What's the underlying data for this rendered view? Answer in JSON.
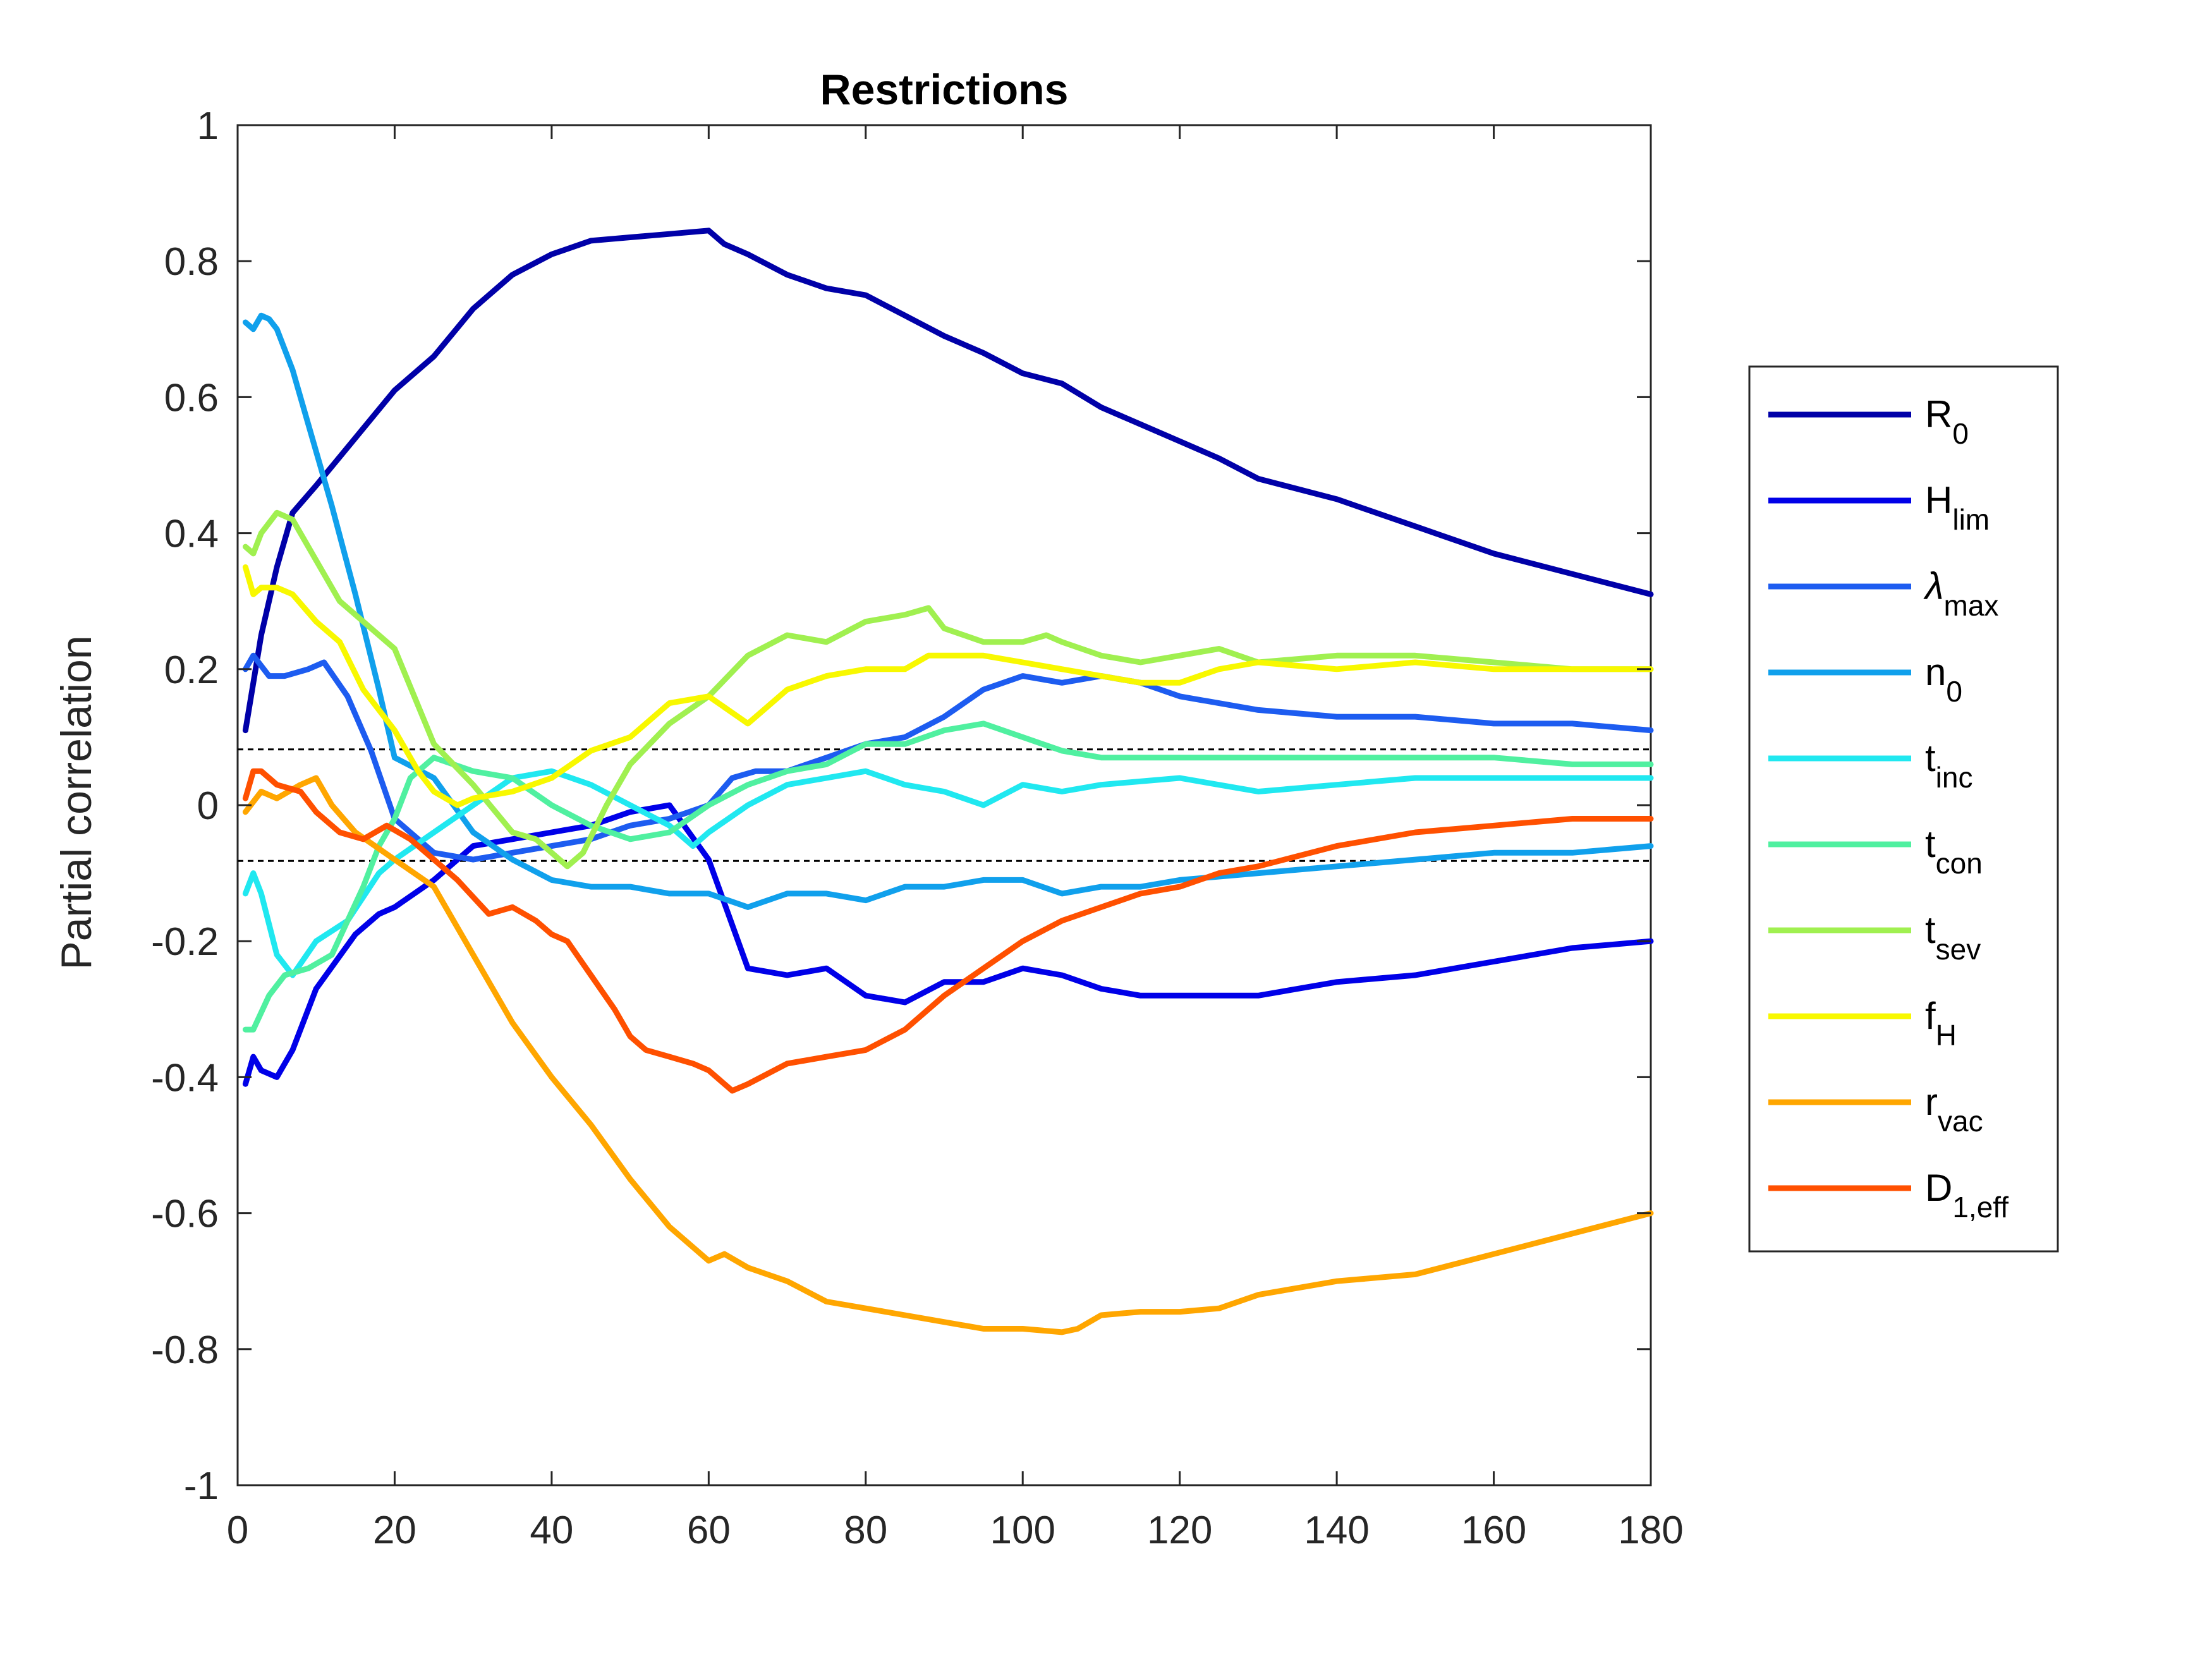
{
  "chart_data": {
    "type": "line",
    "title": "Restrictions",
    "xlabel": "",
    "ylabel": "Partial correlation",
    "xlim": [
      0,
      180
    ],
    "ylim": [
      -1,
      1
    ],
    "xticks": [
      0,
      20,
      40,
      60,
      80,
      100,
      120,
      140,
      160,
      180
    ],
    "yticks": [
      1,
      0.8,
      0.6,
      0.4,
      0.2,
      0,
      -0.2,
      -0.4,
      -0.6,
      -0.8,
      -1
    ],
    "ytick_labels": [
      "1",
      "0.8",
      "0.6",
      "0.4",
      "0.2",
      "0",
      "-0.2",
      "-0.4",
      "-0.6",
      "-0.8",
      "-1"
    ],
    "reference_lines": [
      0.082,
      -0.082
    ],
    "grid": false,
    "legend_position": "right, outside",
    "series": [
      {
        "name": "R",
        "sub": "0",
        "color": "#0000A8",
        "x": [
          1,
          3,
          5,
          7,
          10,
          15,
          20,
          25,
          30,
          35,
          40,
          45,
          50,
          55,
          60,
          62,
          65,
          70,
          75,
          80,
          85,
          90,
          95,
          100,
          105,
          110,
          115,
          120,
          125,
          130,
          140,
          150,
          160,
          170,
          180
        ],
        "y": [
          0.11,
          0.25,
          0.35,
          0.43,
          0.47,
          0.54,
          0.61,
          0.66,
          0.73,
          0.78,
          0.81,
          0.83,
          0.835,
          0.84,
          0.845,
          0.825,
          0.81,
          0.78,
          0.76,
          0.75,
          0.72,
          0.69,
          0.665,
          0.635,
          0.62,
          0.585,
          0.56,
          0.535,
          0.51,
          0.48,
          0.45,
          0.41,
          0.37,
          0.34,
          0.31
        ]
      },
      {
        "name": "H",
        "sub": "lim",
        "color": "#0000E8",
        "x": [
          1,
          2,
          3,
          5,
          7,
          10,
          15,
          18,
          20,
          25,
          30,
          35,
          40,
          45,
          50,
          55,
          60,
          65,
          70,
          75,
          80,
          85,
          90,
          95,
          100,
          105,
          110,
          115,
          120,
          125,
          130,
          140,
          150,
          160,
          170,
          180
        ],
        "y": [
          -0.41,
          -0.37,
          -0.39,
          -0.4,
          -0.36,
          -0.27,
          -0.19,
          -0.16,
          -0.15,
          -0.11,
          -0.06,
          -0.05,
          -0.04,
          -0.03,
          -0.01,
          0.0,
          -0.08,
          -0.24,
          -0.25,
          -0.24,
          -0.28,
          -0.29,
          -0.26,
          -0.26,
          -0.24,
          -0.25,
          -0.27,
          -0.28,
          -0.28,
          -0.28,
          -0.28,
          -0.26,
          -0.25,
          -0.23,
          -0.21,
          -0.2
        ]
      },
      {
        "name": "λ",
        "sub": "max",
        "color": "#1D5CF0",
        "x": [
          1,
          2,
          4,
          6,
          9,
          11,
          14,
          17,
          20,
          25,
          30,
          35,
          40,
          45,
          50,
          55,
          60,
          63,
          66,
          70,
          75,
          80,
          85,
          90,
          95,
          100,
          105,
          110,
          115,
          120,
          130,
          140,
          150,
          160,
          170,
          180
        ],
        "y": [
          0.2,
          0.22,
          0.19,
          0.19,
          0.2,
          0.21,
          0.16,
          0.08,
          -0.02,
          -0.07,
          -0.08,
          -0.07,
          -0.06,
          -0.05,
          -0.03,
          -0.02,
          0.0,
          0.04,
          0.05,
          0.05,
          0.07,
          0.09,
          0.1,
          0.13,
          0.17,
          0.19,
          0.18,
          0.19,
          0.18,
          0.16,
          0.14,
          0.13,
          0.13,
          0.12,
          0.12,
          0.11
        ]
      },
      {
        "name": "n",
        "sub": "0",
        "color": "#10A0EC",
        "x": [
          1,
          2,
          3,
          4,
          5,
          7,
          9,
          12,
          15,
          18,
          20,
          25,
          30,
          35,
          40,
          45,
          50,
          55,
          60,
          65,
          70,
          75,
          80,
          85,
          90,
          95,
          100,
          105,
          110,
          115,
          120,
          130,
          140,
          150,
          160,
          170,
          180
        ],
        "y": [
          0.71,
          0.7,
          0.72,
          0.715,
          0.7,
          0.64,
          0.56,
          0.44,
          0.31,
          0.17,
          0.07,
          0.04,
          -0.04,
          -0.08,
          -0.11,
          -0.12,
          -0.12,
          -0.13,
          -0.13,
          -0.15,
          -0.13,
          -0.13,
          -0.14,
          -0.12,
          -0.12,
          -0.11,
          -0.11,
          -0.13,
          -0.12,
          -0.12,
          -0.11,
          -0.1,
          -0.09,
          -0.08,
          -0.07,
          -0.07,
          -0.06
        ]
      },
      {
        "name": "t",
        "sub": "inc",
        "color": "#20E8F0",
        "x": [
          1,
          2,
          3,
          5,
          7,
          10,
          14,
          18,
          20,
          25,
          30,
          35,
          40,
          45,
          50,
          55,
          58,
          60,
          65,
          70,
          75,
          80,
          85,
          90,
          95,
          100,
          105,
          110,
          120,
          130,
          140,
          150,
          160,
          170,
          180
        ],
        "y": [
          -0.13,
          -0.1,
          -0.13,
          -0.22,
          -0.25,
          -0.2,
          -0.17,
          -0.1,
          -0.08,
          -0.04,
          0.0,
          0.04,
          0.05,
          0.03,
          0.0,
          -0.03,
          -0.06,
          -0.04,
          0.0,
          0.03,
          0.04,
          0.05,
          0.03,
          0.02,
          0.0,
          0.03,
          0.02,
          0.03,
          0.04,
          0.02,
          0.03,
          0.04,
          0.04,
          0.04,
          0.04
        ]
      },
      {
        "name": "t",
        "sub": "con",
        "color": "#50F0A0",
        "x": [
          1,
          2,
          4,
          6,
          9,
          12,
          16,
          18,
          20,
          22,
          25,
          30,
          35,
          40,
          45,
          50,
          55,
          60,
          65,
          70,
          75,
          80,
          85,
          90,
          95,
          100,
          105,
          110,
          120,
          130,
          140,
          150,
          160,
          170,
          180
        ],
        "y": [
          -0.33,
          -0.33,
          -0.28,
          -0.25,
          -0.24,
          -0.22,
          -0.12,
          -0.06,
          -0.02,
          0.04,
          0.07,
          0.05,
          0.04,
          0.0,
          -0.03,
          -0.05,
          -0.04,
          0.0,
          0.03,
          0.05,
          0.06,
          0.09,
          0.09,
          0.11,
          0.12,
          0.1,
          0.08,
          0.07,
          0.07,
          0.07,
          0.07,
          0.07,
          0.07,
          0.06,
          0.06
        ]
      },
      {
        "name": "t",
        "sub": "sev",
        "color": "#A0F050",
        "x": [
          1,
          2,
          3,
          5,
          7,
          10,
          13,
          16,
          20,
          25,
          30,
          35,
          38,
          40,
          42,
          44,
          47,
          50,
          55,
          60,
          65,
          70,
          75,
          80,
          85,
          88,
          90,
          95,
          100,
          103,
          105,
          110,
          115,
          120,
          125,
          130,
          140,
          150,
          160,
          170,
          180
        ],
        "y": [
          0.38,
          0.37,
          0.4,
          0.43,
          0.42,
          0.36,
          0.3,
          0.27,
          0.23,
          0.09,
          0.03,
          -0.04,
          -0.05,
          -0.07,
          -0.09,
          -0.07,
          0.0,
          0.06,
          0.12,
          0.16,
          0.22,
          0.25,
          0.24,
          0.27,
          0.28,
          0.29,
          0.26,
          0.24,
          0.24,
          0.25,
          0.24,
          0.22,
          0.21,
          0.22,
          0.23,
          0.21,
          0.22,
          0.22,
          0.21,
          0.2,
          0.2
        ]
      },
      {
        "name": "f",
        "sub": "H",
        "color": "#F8F800",
        "x": [
          1,
          2,
          3,
          5,
          7,
          10,
          13,
          16,
          20,
          23,
          25,
          28,
          30,
          35,
          40,
          45,
          50,
          55,
          60,
          65,
          70,
          75,
          80,
          85,
          88,
          90,
          95,
          100,
          105,
          110,
          115,
          120,
          125,
          130,
          140,
          150,
          160,
          170,
          180
        ],
        "y": [
          0.35,
          0.31,
          0.32,
          0.32,
          0.31,
          0.27,
          0.24,
          0.17,
          0.11,
          0.05,
          0.02,
          0.0,
          0.01,
          0.02,
          0.04,
          0.08,
          0.1,
          0.15,
          0.16,
          0.12,
          0.17,
          0.19,
          0.2,
          0.2,
          0.22,
          0.22,
          0.22,
          0.21,
          0.2,
          0.19,
          0.18,
          0.18,
          0.2,
          0.21,
          0.2,
          0.21,
          0.2,
          0.2,
          0.2
        ]
      },
      {
        "name": "r",
        "sub": "vac",
        "color": "#FFA600",
        "x": [
          1,
          3,
          5,
          8,
          10,
          12,
          15,
          20,
          25,
          30,
          35,
          40,
          45,
          50,
          55,
          60,
          62,
          65,
          70,
          75,
          80,
          85,
          90,
          95,
          100,
          105,
          107,
          110,
          115,
          120,
          125,
          130,
          140,
          150,
          160,
          170,
          180
        ],
        "y": [
          -0.01,
          0.02,
          0.01,
          0.03,
          0.04,
          0.0,
          -0.04,
          -0.08,
          -0.12,
          -0.22,
          -0.32,
          -0.4,
          -0.47,
          -0.55,
          -0.62,
          -0.67,
          -0.66,
          -0.68,
          -0.7,
          -0.73,
          -0.74,
          -0.75,
          -0.76,
          -0.77,
          -0.77,
          -0.775,
          -0.77,
          -0.75,
          -0.745,
          -0.745,
          -0.74,
          -0.72,
          -0.7,
          -0.69,
          -0.66,
          -0.63,
          -0.6
        ]
      },
      {
        "name": "D",
        "sub": "1,eff",
        "color": "#FF5000",
        "x": [
          1,
          2,
          3,
          5,
          8,
          10,
          13,
          16,
          19,
          22,
          25,
          28,
          32,
          35,
          38,
          40,
          42,
          45,
          48,
          50,
          52,
          55,
          58,
          60,
          63,
          65,
          70,
          75,
          80,
          85,
          90,
          95,
          100,
          105,
          110,
          115,
          120,
          125,
          130,
          140,
          150,
          160,
          170,
          180
        ],
        "y": [
          0.01,
          0.05,
          0.05,
          0.03,
          0.02,
          -0.01,
          -0.04,
          -0.05,
          -0.03,
          -0.05,
          -0.08,
          -0.11,
          -0.16,
          -0.15,
          -0.17,
          -0.19,
          -0.2,
          -0.25,
          -0.3,
          -0.34,
          -0.36,
          -0.37,
          -0.38,
          -0.39,
          -0.42,
          -0.41,
          -0.38,
          -0.37,
          -0.36,
          -0.33,
          -0.28,
          -0.24,
          -0.2,
          -0.17,
          -0.15,
          -0.13,
          -0.12,
          -0.1,
          -0.09,
          -0.06,
          -0.04,
          -0.03,
          -0.02,
          -0.02
        ]
      }
    ]
  }
}
